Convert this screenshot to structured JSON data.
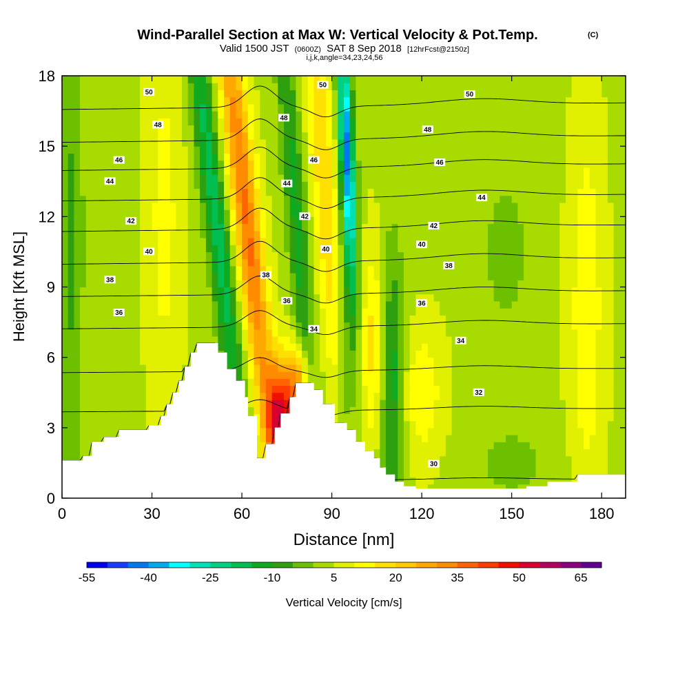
{
  "chart_data": {
    "type": "heatmap",
    "title": "Wind-Parallel Section at Max W: Vertical Velocity & Pot.Temp.",
    "title_mark": "(C)",
    "subtitle_valid": "Valid 1500 JST",
    "subtitle_utc": "(0600Z)",
    "subtitle_date": "SAT 8 Sep 2018",
    "subtitle_fcst": "[12hrFcst@2150z]",
    "subtitle_indices": "i,j,k,angle=34,23,24,56",
    "xlabel": "Distance [nm]",
    "ylabel": "Height [Kft MSL]",
    "xlim": [
      0,
      188
    ],
    "ylim": [
      0,
      18
    ],
    "x_ticks": [
      0,
      30,
      60,
      90,
      120,
      150,
      180
    ],
    "y_ticks": [
      0,
      3,
      6,
      9,
      12,
      15,
      18
    ],
    "colorbar": {
      "label": "Vertical Velocity [cm/s]",
      "range": [
        -55,
        70
      ],
      "step": 5,
      "tick_labels": [
        -55,
        -40,
        -25,
        -10,
        5,
        20,
        35,
        50,
        65
      ],
      "colors": [
        "#0000ee",
        "#1a3cff",
        "#0078f0",
        "#00aaee",
        "#00ffff",
        "#00e0b8",
        "#00d080",
        "#00be50",
        "#10aa20",
        "#2ea010",
        "#6cc000",
        "#a8dc00",
        "#e0f000",
        "#ffff00",
        "#ffe000",
        "#ffc800",
        "#ffa800",
        "#ff8c00",
        "#ff6400",
        "#ff3c00",
        "#f01000",
        "#d80030",
        "#b40060",
        "#8c0080",
        "#600090"
      ]
    },
    "terrain": [
      [
        0,
        1.6
      ],
      [
        7,
        1.6
      ],
      [
        7,
        1.8
      ],
      [
        10,
        1.8
      ],
      [
        10,
        2.4
      ],
      [
        14,
        2.4
      ],
      [
        14,
        2.6
      ],
      [
        19,
        2.6
      ],
      [
        19,
        2.9
      ],
      [
        29,
        2.9
      ],
      [
        29,
        3.1
      ],
      [
        33,
        3.1
      ],
      [
        33,
        3.5
      ],
      [
        35,
        3.5
      ],
      [
        35,
        4.0
      ],
      [
        37,
        4.0
      ],
      [
        37,
        4.5
      ],
      [
        39,
        4.5
      ],
      [
        39,
        5.0
      ],
      [
        41,
        5.0
      ],
      [
        41,
        5.6
      ],
      [
        43,
        5.6
      ],
      [
        43,
        6.2
      ],
      [
        45,
        6.2
      ],
      [
        45,
        6.6
      ],
      [
        52,
        6.6
      ],
      [
        52,
        6.2
      ],
      [
        55,
        6.2
      ],
      [
        55,
        5.5
      ],
      [
        58,
        5.5
      ],
      [
        58,
        5.0
      ],
      [
        61,
        5.0
      ],
      [
        61,
        4.3
      ],
      [
        62,
        4.3
      ],
      [
        62,
        3.5
      ],
      [
        65,
        3.5
      ],
      [
        65,
        1.7
      ],
      [
        68,
        1.7
      ],
      [
        68,
        2.3
      ],
      [
        71,
        2.3
      ],
      [
        71,
        3.0
      ],
      [
        73,
        3.0
      ],
      [
        73,
        3.6
      ],
      [
        76,
        3.6
      ],
      [
        76,
        4.3
      ],
      [
        78,
        4.3
      ],
      [
        78,
        4.9
      ],
      [
        84,
        4.9
      ],
      [
        84,
        4.6
      ],
      [
        87,
        4.6
      ],
      [
        87,
        4.0
      ],
      [
        91,
        4.0
      ],
      [
        91,
        3.2
      ],
      [
        95,
        3.2
      ],
      [
        95,
        2.9
      ],
      [
        98,
        2.9
      ],
      [
        98,
        2.4
      ],
      [
        101,
        2.4
      ],
      [
        101,
        2.0
      ],
      [
        104,
        2.0
      ],
      [
        104,
        1.7
      ],
      [
        106,
        1.7
      ],
      [
        106,
        1.3
      ],
      [
        108,
        1.3
      ],
      [
        108,
        1.0
      ],
      [
        111,
        1.0
      ],
      [
        111,
        0.7
      ],
      [
        114,
        0.7
      ],
      [
        114,
        0.5
      ],
      [
        118,
        0.5
      ],
      [
        118,
        0.4
      ],
      [
        155,
        0.4
      ],
      [
        155,
        0.5
      ],
      [
        162,
        0.5
      ],
      [
        162,
        0.7
      ],
      [
        172,
        0.7
      ],
      [
        172,
        1.0
      ],
      [
        188,
        1.0
      ]
    ],
    "theta_contours": [
      {
        "label": "30",
        "ref": 0.8,
        "labels_at": [
          [
            124,
            1.45
          ]
        ]
      },
      {
        "label": "32",
        "ref": 3.8,
        "labels_at": [
          [
            139,
            4.5
          ]
        ]
      },
      {
        "label": "34",
        "ref": 5.5,
        "labels_at": [
          [
            84,
            7.2
          ],
          [
            133,
            6.7
          ]
        ]
      },
      {
        "label": "36",
        "ref": 7.4,
        "labels_at": [
          [
            19,
            7.9
          ],
          [
            75,
            8.4
          ],
          [
            120,
            8.3
          ]
        ]
      },
      {
        "label": "38",
        "ref": 8.8,
        "labels_at": [
          [
            16,
            9.3
          ],
          [
            68,
            9.5
          ],
          [
            129,
            9.9
          ]
        ]
      },
      {
        "label": "40",
        "ref": 10.2,
        "labels_at": [
          [
            29,
            10.5
          ],
          [
            88,
            10.6
          ],
          [
            120,
            10.8
          ]
        ]
      },
      {
        "label": "42",
        "ref": 11.6,
        "labels_at": [
          [
            23,
            11.8
          ],
          [
            81,
            12.0
          ],
          [
            124,
            11.6
          ]
        ]
      },
      {
        "label": "44",
        "ref": 12.9,
        "labels_at": [
          [
            16,
            13.5
          ],
          [
            75,
            13.4
          ],
          [
            140,
            12.8
          ]
        ]
      },
      {
        "label": "46",
        "ref": 14.2,
        "labels_at": [
          [
            19,
            14.4
          ],
          [
            84,
            14.4
          ],
          [
            126,
            14.3
          ]
        ]
      },
      {
        "label": "48",
        "ref": 15.4,
        "labels_at": [
          [
            32,
            15.9
          ],
          [
            74,
            16.2
          ],
          [
            122,
            15.7
          ]
        ]
      },
      {
        "label": "50",
        "ref": 16.8,
        "labels_at": [
          [
            29,
            17.3
          ],
          [
            87,
            17.6
          ],
          [
            136,
            17.2
          ]
        ]
      }
    ]
  }
}
